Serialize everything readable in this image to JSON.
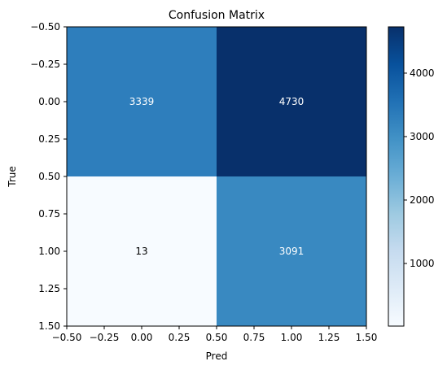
{
  "chart_data": {
    "type": "heatmap",
    "title": "Confusion Matrix",
    "xlabel": "Pred",
    "ylabel": "True",
    "xlim": [
      -0.5,
      1.5
    ],
    "ylim": [
      1.5,
      -0.5
    ],
    "x_ticks": [
      "−0.50",
      "−0.25",
      "0.00",
      "0.25",
      "0.50",
      "0.75",
      "1.00",
      "1.25",
      "1.50"
    ],
    "y_ticks": [
      "−0.50",
      "−0.25",
      "0.00",
      "0.25",
      "0.50",
      "0.75",
      "1.00",
      "1.25",
      "1.50"
    ],
    "x_tick_values": [
      -0.5,
      -0.25,
      0,
      0.25,
      0.5,
      0.75,
      1.0,
      1.25,
      1.5
    ],
    "y_tick_values": [
      -0.5,
      -0.25,
      0,
      0.25,
      0.5,
      0.75,
      1.0,
      1.25,
      1.5
    ],
    "matrix": [
      [
        3339,
        4730
      ],
      [
        13,
        3091
      ]
    ],
    "cell_colors": [
      [
        "#2e7ebc",
        "#08306b"
      ],
      [
        "#f7fbff",
        "#3989c1"
      ]
    ],
    "cell_text_colors": [
      [
        "#ffffff",
        "#ffffff"
      ],
      [
        "#000000",
        "#ffffff"
      ]
    ],
    "colormap": "Blues",
    "colorbar": {
      "range": [
        13,
        4730
      ],
      "ticks": [
        "1000",
        "2000",
        "3000",
        "4000"
      ],
      "tick_values": [
        1000,
        2000,
        3000,
        4000
      ]
    },
    "grid": false
  }
}
